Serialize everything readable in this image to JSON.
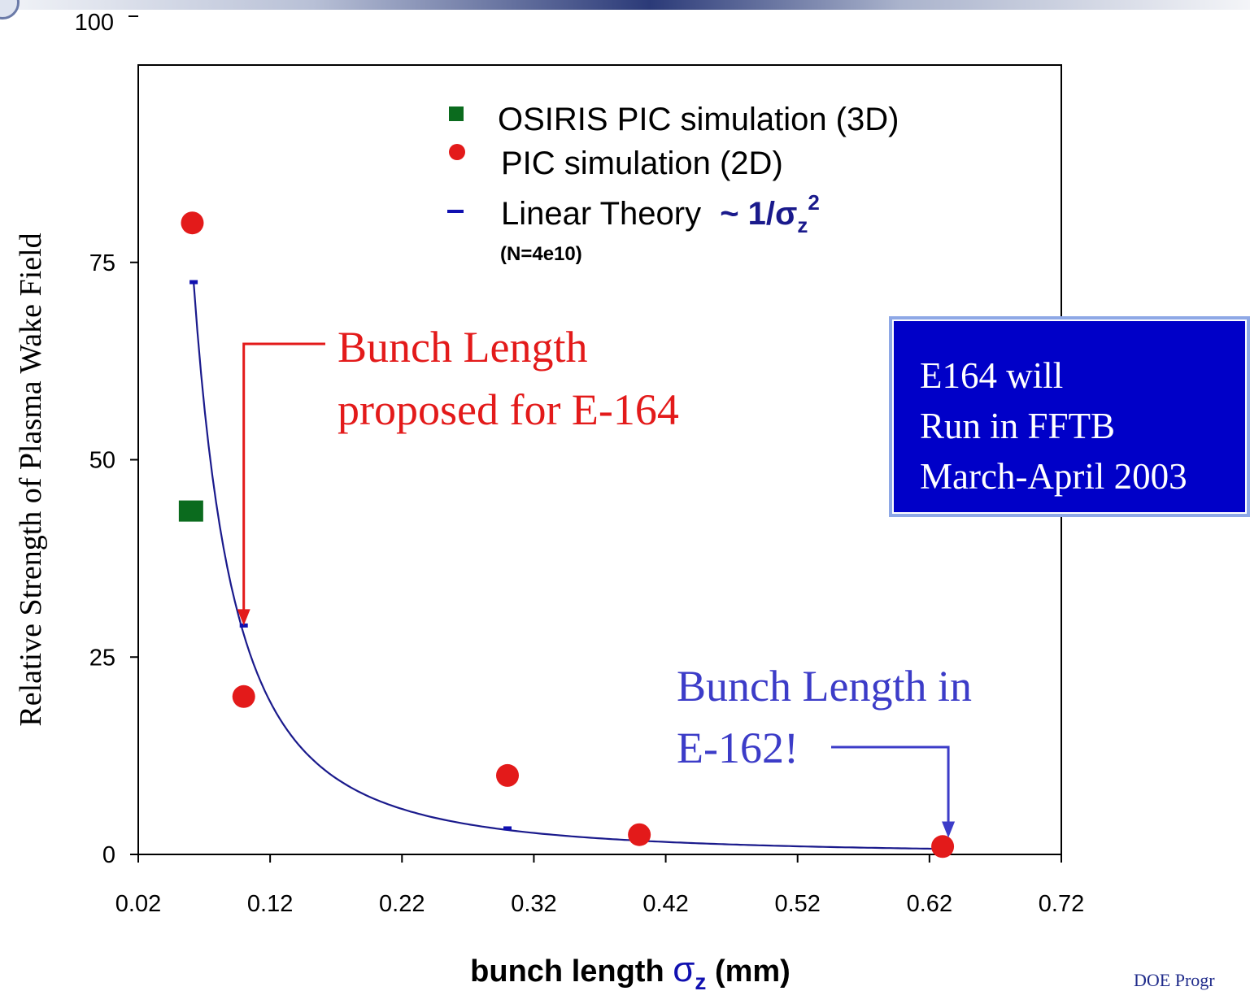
{
  "chart_data": {
    "type": "scatter",
    "title": "",
    "xlabel_prefix": "bunch length ",
    "xlabel_symbol": "σ",
    "xlabel_subscript": "z",
    "xlabel_suffix": " (mm)",
    "ylabel": "Relative Strength of Plasma Wake Field",
    "xlim": [
      0.02,
      0.72
    ],
    "ylim": [
      0,
      100
    ],
    "x_ticks": [
      "0.02",
      "0.12",
      "0.22",
      "0.32",
      "0.42",
      "0.52",
      "0.62",
      "0.72"
    ],
    "y_ticks": [
      "0",
      "25",
      "50",
      "75",
      "100"
    ],
    "grid": false,
    "legend_position": "top-right",
    "series": [
      {
        "name": "OSIRIS PIC simulation (3D)",
        "marker": "square",
        "color": "#0b6b1e",
        "points": [
          {
            "x": 0.06,
            "y": 43.5
          }
        ]
      },
      {
        "name": "PIC simulation (2D)",
        "marker": "circle",
        "color": "#e31a1a",
        "points": [
          {
            "x": 0.061,
            "y": 80
          },
          {
            "x": 0.1,
            "y": 20
          },
          {
            "x": 0.3,
            "y": 10
          },
          {
            "x": 0.4,
            "y": 2.5
          },
          {
            "x": 0.63,
            "y": 1
          }
        ]
      },
      {
        "name": "Linear Theory",
        "name_formula": "~ 1/σ",
        "name_formula_sub": "z",
        "name_formula_sup": "2",
        "name_note": "(N=4e10)",
        "marker": "dash-line",
        "color": "#1010b0",
        "points": [
          {
            "x": 0.062,
            "y": 72.5
          },
          {
            "x": 0.1,
            "y": 29
          },
          {
            "x": 0.3,
            "y": 3.3
          },
          {
            "x": 0.4,
            "y": 1.9
          },
          {
            "x": 0.63,
            "y": 0.9
          }
        ]
      }
    ],
    "annotations": [
      {
        "id": "e164",
        "lines": [
          "Bunch Length",
          "proposed for E-164"
        ],
        "color": "#e31a1a",
        "arrow_to": {
          "x": 0.1,
          "y": 29
        }
      },
      {
        "id": "e162",
        "lines": [
          "Bunch Length in",
          "E-162!"
        ],
        "color": "#3c3cc8",
        "arrow_to": {
          "x": 0.63,
          "y": 1.9
        }
      }
    ]
  },
  "info_box": {
    "lines": [
      "E164 will",
      "Run in FFTB",
      "March-April 2003"
    ]
  },
  "footer": {
    "text": "DOE Progr"
  },
  "colors": {
    "curve": "#1a1a8c",
    "axis": "#000000",
    "info_box_bg": "#0000c8"
  }
}
